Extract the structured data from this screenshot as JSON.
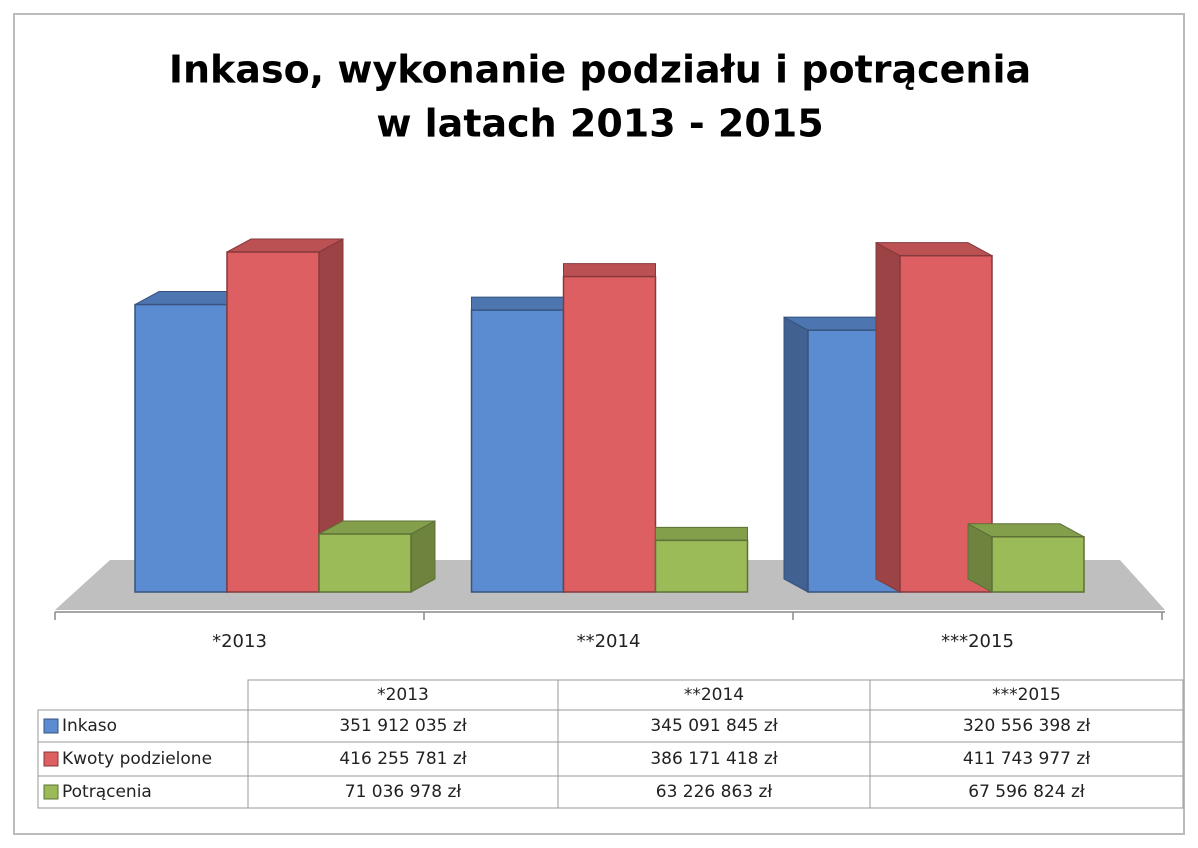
{
  "chart_data": {
    "type": "bar3d",
    "title": [
      "Inkaso, wykonanie podziału i potrącenia",
      "w latach 2013 - 2015"
    ],
    "categories": [
      "*2013",
      "**2014",
      "***2015"
    ],
    "series": [
      {
        "name": "Inkaso",
        "color": "#5b8bd0",
        "values": [
          351912035,
          345091845,
          320556398
        ],
        "value_labels": [
          "351 912 035 zł",
          "345 091 845 zł",
          "320 556 398 zł"
        ]
      },
      {
        "name": "Kwoty podzielone",
        "color": "#dd5f62",
        "values": [
          416255781,
          386171418,
          411743977
        ],
        "value_labels": [
          "416 255 781 zł",
          "386 171 418 zł",
          "411 743 977 zł"
        ]
      },
      {
        "name": "Potrącenia",
        "color": "#9bbb59",
        "values": [
          71036978,
          63226863,
          67596824
        ],
        "value_labels": [
          "71 036 978 zł",
          "63 226 863 zł",
          "67 596 824 zł"
        ]
      }
    ]
  }
}
